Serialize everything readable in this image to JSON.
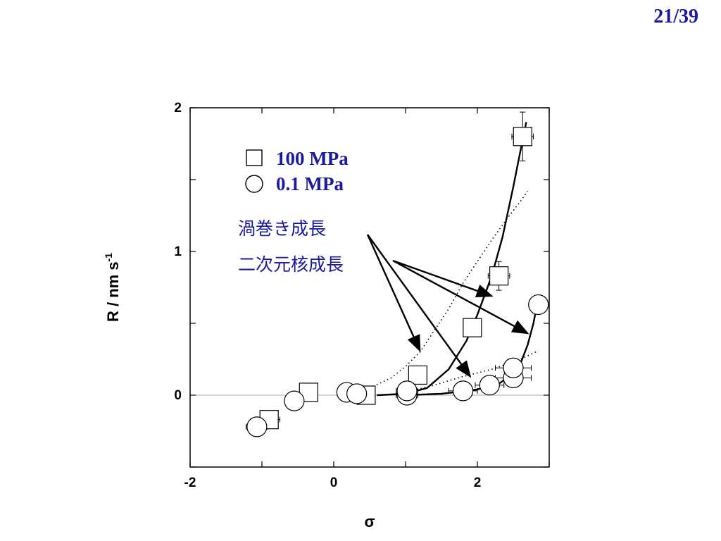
{
  "slide": {
    "page_number": "21/39"
  },
  "chart_data": {
    "type": "scatter",
    "title": "",
    "xlabel": "σ",
    "ylabel": "R / nm s",
    "ylabel_superscript": "-1",
    "xlim": [
      -2,
      3
    ],
    "ylim": [
      -0.5,
      2
    ],
    "x_ticks": [
      -2,
      0,
      2
    ],
    "y_ticks": [
      0,
      1,
      2
    ],
    "grid": false,
    "zero_line": true,
    "legend_position": "top-left",
    "series": [
      {
        "name": "100 MPa",
        "marker": "square",
        "points": [
          {
            "x": -0.9,
            "y": -0.17,
            "xerr": 0.15,
            "yerr": 0.04
          },
          {
            "x": -0.35,
            "y": 0.02,
            "xerr": 0.12,
            "yerr": 0.03
          },
          {
            "x": 0.45,
            "y": 0.0,
            "xerr": 0.1,
            "yerr": 0.02
          },
          {
            "x": 1.17,
            "y": 0.14,
            "xerr": 0.12,
            "yerr": 0.04
          },
          {
            "x": 1.93,
            "y": 0.47,
            "xerr": 0.12,
            "yerr": 0.05
          },
          {
            "x": 2.3,
            "y": 0.83,
            "xerr": 0.15,
            "yerr": 0.1
          },
          {
            "x": 2.63,
            "y": 1.8,
            "xerr": 0.15,
            "yerr": 0.17
          }
        ]
      },
      {
        "name": "0.1 MPa",
        "marker": "circle",
        "points": [
          {
            "x": -1.07,
            "y": -0.22,
            "xerr": 0.15,
            "yerr": 0.03
          },
          {
            "x": -0.55,
            "y": -0.04,
            "xerr": 0.12,
            "yerr": 0.02
          },
          {
            "x": 0.18,
            "y": 0.02,
            "xerr": 0.1,
            "yerr": 0.02
          },
          {
            "x": 0.32,
            "y": 0.01,
            "xerr": 0.1,
            "yerr": 0.02
          },
          {
            "x": 1.02,
            "y": 0.0,
            "xerr": 0.15,
            "yerr": 0.02
          },
          {
            "x": 1.02,
            "y": 0.03,
            "xerr": 0.15,
            "yerr": 0.02
          },
          {
            "x": 1.8,
            "y": 0.03,
            "xerr": 0.2,
            "yerr": 0.02
          },
          {
            "x": 2.17,
            "y": 0.07,
            "xerr": 0.2,
            "yerr": 0.02
          },
          {
            "x": 2.5,
            "y": 0.12,
            "xerr": 0.25,
            "yerr": 0.03
          },
          {
            "x": 2.5,
            "y": 0.19,
            "xerr": 0.25,
            "yerr": 0.03
          },
          {
            "x": 2.85,
            "y": 0.63,
            "xerr": 0.12,
            "yerr": 0.04
          }
        ]
      }
    ],
    "fit_curves": [
      {
        "kind": "solid",
        "group": "100 MPa",
        "points": [
          [
            0.6,
            0.0
          ],
          [
            1.0,
            0.01
          ],
          [
            1.3,
            0.05
          ],
          [
            1.6,
            0.18
          ],
          [
            1.85,
            0.38
          ],
          [
            2.0,
            0.56
          ],
          [
            2.2,
            0.83
          ],
          [
            2.35,
            1.1
          ],
          [
            2.5,
            1.45
          ],
          [
            2.62,
            1.75
          ],
          [
            2.68,
            1.9
          ]
        ]
      },
      {
        "kind": "solid",
        "group": "0.1 MPa",
        "points": [
          [
            1.0,
            0.0
          ],
          [
            1.5,
            0.01
          ],
          [
            2.0,
            0.04
          ],
          [
            2.3,
            0.08
          ],
          [
            2.5,
            0.15
          ],
          [
            2.6,
            0.22
          ],
          [
            2.7,
            0.35
          ],
          [
            2.78,
            0.5
          ],
          [
            2.82,
            0.6
          ]
        ]
      },
      {
        "kind": "dotted",
        "group": "100 MPa",
        "points": [
          [
            0.5,
            0.05
          ],
          [
            0.8,
            0.12
          ],
          [
            1.0,
            0.2
          ],
          [
            1.2,
            0.3
          ],
          [
            1.4,
            0.45
          ],
          [
            1.6,
            0.6
          ],
          [
            1.8,
            0.78
          ],
          [
            2.0,
            0.93
          ],
          [
            2.2,
            1.08
          ],
          [
            2.4,
            1.22
          ],
          [
            2.6,
            1.35
          ],
          [
            2.7,
            1.42
          ]
        ]
      },
      {
        "kind": "dotted",
        "group": "0.1 MPa",
        "points": [
          [
            1.0,
            0.02
          ],
          [
            1.4,
            0.07
          ],
          [
            1.8,
            0.13
          ],
          [
            2.2,
            0.18
          ],
          [
            2.6,
            0.25
          ],
          [
            2.85,
            0.31
          ]
        ]
      }
    ],
    "annotations": [
      {
        "text": "渦巻き成長",
        "arrow_targets": [
          [
            1.2,
            0.31
          ],
          [
            1.9,
            0.13
          ]
        ]
      },
      {
        "text": "二次元核成長",
        "arrow_targets": [
          [
            2.2,
            0.69
          ],
          [
            2.7,
            0.43
          ]
        ]
      }
    ]
  },
  "colors": {
    "text_accent": "#1a1aa0",
    "axis": "#000000",
    "zero_line": "#aaaaaa"
  }
}
